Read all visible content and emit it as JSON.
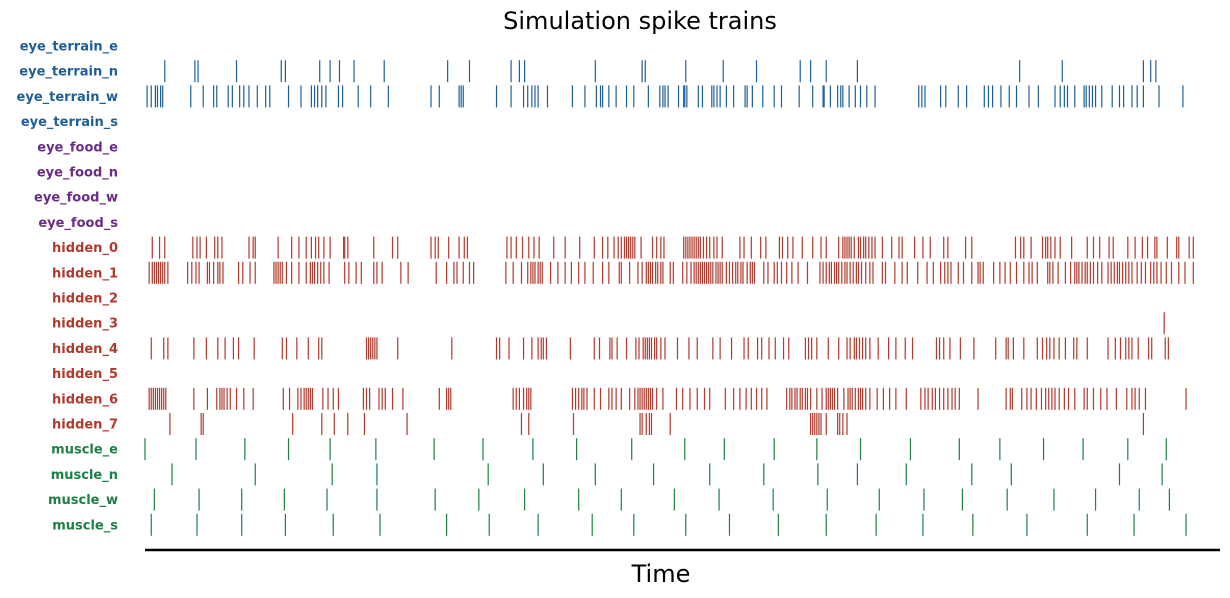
{
  "chart_data": {
    "type": "raster",
    "title": "Simulation spike trains",
    "xlabel": "Time",
    "ylabel": "",
    "xlim": [
      0,
      1000
    ],
    "group_colors": {
      "eye_terrain": "#1f5f99",
      "eye_food": "#6a2c86",
      "hidden": "#b03a2e",
      "muscle": "#1e8046"
    },
    "rows": [
      {
        "label": "eye_terrain_e",
        "group": "eye_terrain",
        "spikes": []
      },
      {
        "label": "eye_terrain_n",
        "group": "eye_terrain",
        "spikes": [
          19,
          48,
          51,
          88,
          131,
          135,
          168,
          178,
          187,
          201,
          230,
          291,
          312,
          352,
          360,
          365,
          433,
          478,
          481,
          520,
          556,
          588,
          630,
          640,
          655,
          685,
          841,
          882,
          960,
          967,
          972
        ]
      },
      {
        "label": "eye_terrain_w",
        "group": "eye_terrain",
        "spikes": [
          2,
          6,
          10,
          12,
          15,
          17,
          44,
          56,
          66,
          69,
          80,
          84,
          91,
          95,
          100,
          108,
          116,
          120,
          138,
          150,
          160,
          163,
          166,
          170,
          174,
          186,
          190,
          205,
          217,
          234,
          275,
          283,
          302,
          304,
          306,
          338,
          352,
          364,
          368,
          372,
          375,
          378,
          387,
          411,
          423,
          434,
          438,
          440,
          446,
          453,
          463,
          470,
          484,
          495,
          498,
          500,
          503,
          513,
          518,
          519,
          521,
          532,
          536,
          545,
          547,
          550,
          553,
          559,
          566,
          577,
          579,
          584,
          594,
          605,
          612,
          629,
          642,
          652,
          653,
          659,
          666,
          669,
          671,
          677,
          683,
          688,
          694,
          702,
          744,
          747,
          750,
          765,
          770,
          782,
          790,
          807,
          811,
          815,
          823,
          831,
          838,
          850,
          859,
          875,
          880,
          884,
          887,
          894,
          903,
          905,
          908,
          911,
          914,
          920,
          930,
          937,
          941,
          949,
          954,
          960,
          975,
          998
        ]
      },
      {
        "label": "eye_terrain_s",
        "group": "eye_terrain",
        "spikes": []
      },
      {
        "label": "eye_food_e",
        "group": "eye_food",
        "spikes": []
      },
      {
        "label": "eye_food_n",
        "group": "eye_food",
        "spikes": []
      },
      {
        "label": "eye_food_w",
        "group": "eye_food",
        "spikes": []
      },
      {
        "label": "eye_food_s",
        "group": "eye_food",
        "spikes": []
      },
      {
        "label": "hidden_0",
        "group": "hidden",
        "spikes": [
          7,
          14,
          19,
          46,
          50,
          53,
          59,
          67,
          70,
          74,
          100,
          104,
          106,
          128,
          141,
          148,
          155,
          160,
          164,
          167,
          172,
          178,
          191,
          192,
          195,
          220,
          238,
          243,
          275,
          279,
          282,
          292,
          302,
          307,
          310,
          348,
          352,
          357,
          363,
          369,
          374,
          379,
          393,
          404,
          418,
          432,
          440,
          445,
          451,
          455,
          458,
          461,
          463,
          465,
          467,
          469,
          471,
          477,
          488,
          492,
          496,
          499,
          518,
          520,
          522,
          524,
          526,
          528,
          530,
          532,
          534,
          537,
          540,
          543,
          547,
          550,
          555,
          572,
          576,
          583,
          592,
          597,
          610,
          613,
          618,
          623,
          632,
          642,
          650,
          655,
          667,
          671,
          673,
          675,
          677,
          679,
          682,
          686,
          688,
          691,
          693,
          696,
          699,
          702,
          709,
          718,
          725,
          728,
          740,
          748,
          755,
          768,
          772,
          789,
          795,
          837,
          842,
          845,
          852,
          863,
          866,
          868,
          871,
          875,
          880,
          891,
          906,
          912,
          918,
          927,
          931,
          945,
          952,
          959,
          964,
          971,
          973,
          983,
          992,
          994,
          1004,
          1008
        ]
      },
      {
        "label": "hidden_1",
        "group": "hidden",
        "spikes": [
          4,
          7,
          9,
          11,
          13,
          15,
          17,
          19,
          22,
          41,
          45,
          49,
          52,
          60,
          62,
          66,
          70,
          72,
          75,
          90,
          94,
          101,
          106,
          124,
          126,
          128,
          130,
          132,
          136,
          141,
          148,
          155,
          159,
          161,
          163,
          166,
          169,
          172,
          177,
          192,
          196,
          203,
          208,
          220,
          223,
          228,
          246,
          253,
          280,
          290,
          297,
          300,
          306,
          312,
          316,
          347,
          354,
          362,
          368,
          371,
          373,
          375,
          378,
          380,
          382,
          390,
          397,
          404,
          410,
          417,
          423,
          431,
          440,
          446,
          456,
          458,
          466,
          474,
          478,
          482,
          484,
          486,
          488,
          491,
          493,
          496,
          498,
          505,
          508,
          517,
          521,
          525,
          528,
          530,
          532,
          534,
          536,
          538,
          540,
          542,
          544,
          546,
          549,
          551,
          553,
          555,
          559,
          562,
          565,
          568,
          570,
          573,
          575,
          579,
          582,
          584,
          586,
          595,
          599,
          605,
          608,
          612,
          617,
          622,
          628,
          637,
          649,
          652,
          655,
          658,
          660,
          663,
          665,
          667,
          670,
          673,
          675,
          678,
          681,
          684,
          686,
          689,
          693,
          697,
          700,
          709,
          712,
          721,
          728,
          733,
          743,
          752,
          758,
          765,
          769,
          772,
          775,
          782,
          787,
          795,
          801,
          803,
          806,
          816,
          822,
          827,
          832,
          838,
          845,
          850,
          853,
          858,
          868,
          870,
          873,
          878,
          885,
          890,
          894,
          896,
          898,
          901,
          904,
          906,
          909,
          912,
          916,
          920,
          926,
          929,
          932,
          935,
          937,
          940,
          943,
          946,
          949,
          954,
          958,
          962,
          967,
          970,
          973,
          977,
          982,
          987,
          994,
          1000,
          1008
        ]
      },
      {
        "label": "hidden_2",
        "group": "hidden",
        "spikes": []
      },
      {
        "label": "hidden_3",
        "group": "hidden",
        "spikes": [
          980
        ]
      },
      {
        "label": "hidden_4",
        "group": "hidden",
        "spikes": [
          6,
          18,
          22,
          47,
          59,
          70,
          77,
          85,
          90,
          105,
          132,
          136,
          146,
          157,
          167,
          170,
          213,
          215,
          217,
          219,
          221,
          223,
          243,
          295,
          338,
          341,
          350,
          364,
          372,
          378,
          381,
          383,
          386,
          409,
          432,
          437,
          447,
          449,
          454,
          463,
          472,
          475,
          479,
          481,
          483,
          485,
          487,
          490,
          492,
          496,
          500,
          512,
          523,
          531,
          546,
          553,
          564,
          576,
          580,
          589,
          593,
          600,
          606,
          614,
          619,
          635,
          638,
          641,
          646,
          657,
          667,
          675,
          678,
          682,
          684,
          687,
          690,
          693,
          697,
          705,
          715,
          722,
          731,
          738,
          761,
          764,
          768,
          774,
          784,
          797,
          818,
          828,
          830,
          835,
          845,
          858,
          863,
          867,
          870,
          874,
          879,
          885,
          893,
          896,
          906,
          926,
          933,
          938,
          943,
          946,
          949,
          955,
          965,
          968,
          981,
          984
        ]
      },
      {
        "label": "hidden_5",
        "group": "hidden",
        "spikes": []
      },
      {
        "label": "hidden_6",
        "group": "hidden",
        "spikes": [
          4,
          6,
          8,
          10,
          12,
          14,
          16,
          18,
          20,
          47,
          60,
          69,
          72,
          74,
          76,
          79,
          82,
          88,
          95,
          104,
          133,
          139,
          147,
          150,
          153,
          155,
          157,
          159,
          161,
          171,
          176,
          181,
          186,
          210,
          213,
          216,
          225,
          228,
          231,
          238,
          248,
          283,
          290,
          292,
          294,
          354,
          357,
          360,
          364,
          367,
          369,
          371,
          411,
          414,
          417,
          420,
          422,
          425,
          432,
          438,
          446,
          449,
          453,
          458,
          466,
          471,
          474,
          476,
          478,
          480,
          482,
          484,
          486,
          488,
          492,
          498,
          511,
          517,
          524,
          531,
          538,
          543,
          558,
          566,
          572,
          578,
          583,
          588,
          593,
          598,
          617,
          620,
          622,
          625,
          627,
          630,
          632,
          635,
          637,
          640,
          646,
          651,
          655,
          657,
          659,
          661,
          663,
          666,
          672,
          676,
          678,
          680,
          683,
          686,
          688,
          690,
          693,
          697,
          704,
          710,
          716,
          722,
          732,
          746,
          750,
          753,
          757,
          760,
          764,
          768,
          772,
          776,
          779,
          783,
          801,
          828,
          832,
          834,
          843,
          848,
          852,
          857,
          862,
          866,
          869,
          872,
          875,
          879,
          884,
          888,
          894,
          903,
          906,
          912,
          919,
          925,
          934,
          944,
          949,
          952,
          956,
          962,
          1001
        ]
      },
      {
        "label": "hidden_7",
        "group": "hidden",
        "spikes": [
          24,
          54,
          56,
          142,
          170,
          182,
          195,
          211,
          252,
          362,
          369,
          412,
          476,
          478,
          482,
          485,
          487,
          505,
          640,
          642,
          644,
          646,
          648,
          650,
          655,
          666,
          668,
          671,
          675,
          960
        ]
      },
      {
        "label": "muscle_e",
        "group": "muscle",
        "spikes": [
          0,
          49,
          96,
          138,
          178,
          222,
          278,
          325,
          373,
          415,
          468,
          519,
          557,
          605,
          646,
          688,
          736,
          783,
          822,
          864,
          902,
          945,
          982
        ]
      },
      {
        "label": "muscle_n",
        "group": "muscle",
        "spikes": [
          26,
          106,
          180,
          223,
          330,
          383,
          433,
          489,
          543,
          595,
          647,
          685,
          732,
          795,
          833,
          937,
          978
        ]
      },
      {
        "label": "muscle_w",
        "group": "muscle",
        "spikes": [
          9,
          52,
          93,
          134,
          175,
          223,
          279,
          321,
          365,
          417,
          458,
          509,
          552,
          604,
          656,
          706,
          749,
          786,
          829,
          874,
          914,
          956,
          985
        ]
      },
      {
        "label": "muscle_s",
        "group": "muscle",
        "spikes": [
          6,
          50,
          93,
          135,
          181,
          226,
          290,
          331,
          378,
          430,
          470,
          520,
          562,
          609,
          655,
          703,
          748,
          796,
          848,
          906,
          951,
          1001
        ]
      }
    ]
  }
}
